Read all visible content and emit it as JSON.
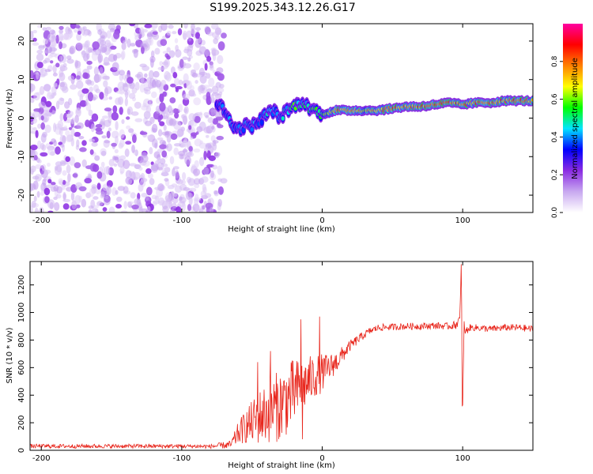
{
  "title": "S199.2025.343.12.26.G17",
  "chart_data": [
    {
      "type": "heatmap",
      "title": "S199.2025.343.12.26.G17",
      "xlabel": "Height of straight line (km)",
      "ylabel": "Frequency (Hz)",
      "xlim": [
        -208,
        150
      ],
      "ylim": [
        -24.5,
        24.5
      ],
      "xticks": [
        -200,
        -100,
        0,
        100
      ],
      "xtick_labels": [
        "-200",
        "-100",
        "0",
        "100"
      ],
      "yticks": [
        -20,
        -10,
        0,
        10,
        20
      ],
      "ytick_labels": [
        "-20",
        "-10",
        "0",
        "10",
        "20"
      ],
      "colorbar": {
        "label": "Normalized spectral amplitude",
        "range": [
          0.0,
          1.0
        ],
        "ticks": [
          0.0,
          0.2,
          0.4,
          0.6,
          0.8
        ],
        "tick_labels": [
          "0.0",
          "0.2",
          "0.4",
          "0.6",
          "0.8"
        ],
        "colormap": [
          "#ffffff",
          "#c8a8f0",
          "#8a2be2",
          "#0000ff",
          "#00e5ff",
          "#00ff00",
          "#ffff00",
          "#ff8000",
          "#ff0000",
          "#ff00a0"
        ]
      },
      "ridge": {
        "description": "frequency of spectral peak vs height",
        "heights_km": [
          -75,
          -70,
          -65,
          -60,
          -55,
          -50,
          -45,
          -40,
          -35,
          -30,
          -25,
          -20,
          -15,
          -10,
          -5,
          0,
          10,
          20,
          30,
          40,
          50,
          60,
          70,
          80,
          90,
          100,
          110,
          120,
          130,
          140,
          150
        ],
        "frequency_hz": [
          4,
          2,
          -1,
          -3,
          -2,
          -2,
          -1,
          1,
          2,
          0,
          2,
          3,
          4,
          3,
          2,
          1,
          2,
          2,
          2,
          2,
          2.5,
          3,
          3,
          3.5,
          4,
          3.5,
          4,
          4,
          4.5,
          4.5,
          4.5
        ],
        "amplitude": [
          0.35,
          0.4,
          0.45,
          0.4,
          0.4,
          0.45,
          0.4,
          0.45,
          0.45,
          0.4,
          0.5,
          0.55,
          0.5,
          0.5,
          0.55,
          0.6,
          0.8,
          0.85,
          0.7,
          0.8,
          0.85,
          0.8,
          0.85,
          0.9,
          0.85,
          0.8,
          0.8,
          0.85,
          0.8,
          0.85,
          0.8
        ]
      },
      "noise_region_km": [
        -208,
        -70
      ]
    },
    {
      "type": "line",
      "xlabel": "Height of straight line (km)",
      "ylabel": "SNR (10 * v/v)",
      "xlim": [
        -208,
        150
      ],
      "ylim": [
        0,
        1370
      ],
      "xticks": [
        -200,
        -100,
        0,
        100
      ],
      "xtick_labels": [
        "-200",
        "-100",
        "0",
        "100"
      ],
      "yticks": [
        0,
        200,
        400,
        600,
        800,
        1000,
        1200
      ],
      "ytick_labels": [
        "0",
        "200",
        "400",
        "600",
        "800",
        "1000",
        "1200"
      ],
      "series": [
        {
          "name": "SNR",
          "color": "#e8261c",
          "x": [
            -208,
            -180,
            -150,
            -120,
            -100,
            -80,
            -65,
            -60,
            -55,
            -50,
            -45,
            -40,
            -35,
            -30,
            -25,
            -20,
            -15,
            -10,
            -5,
            0,
            5,
            10,
            15,
            20,
            25,
            30,
            35,
            40,
            50,
            60,
            70,
            80,
            90,
            95,
            98,
            99,
            100,
            101,
            102,
            105,
            110,
            120,
            130,
            140,
            150
          ],
          "y": [
            30,
            30,
            30,
            30,
            30,
            28,
            40,
            120,
            170,
            200,
            240,
            270,
            300,
            330,
            370,
            420,
            460,
            500,
            540,
            560,
            600,
            640,
            700,
            760,
            800,
            840,
            870,
            890,
            895,
            900,
            900,
            905,
            900,
            910,
            950,
            1350,
            330,
            900,
            860,
            890,
            890,
            880,
            890,
            890,
            880
          ],
          "noise_amplitude": [
            15,
            15,
            15,
            15,
            15,
            15,
            30,
            80,
            120,
            160,
            200,
            220,
            250,
            260,
            260,
            250,
            200,
            180,
            160,
            140,
            100,
            80,
            60,
            40,
            35,
            30,
            25,
            25,
            25,
            25,
            25,
            25,
            25,
            30,
            40,
            0,
            0,
            50,
            30,
            25,
            25,
            25,
            25,
            25,
            25
          ],
          "spikes": [
            {
              "x": -46,
              "y": 640
            },
            {
              "x": -37,
              "y": 720
            },
            {
              "x": -15,
              "y": 950
            },
            {
              "x": -2,
              "y": 970
            },
            {
              "x": -14,
              "y": 80
            },
            {
              "x": 99,
              "y": 1350
            },
            {
              "x": 99.5,
              "y": 320
            }
          ]
        }
      ]
    }
  ]
}
